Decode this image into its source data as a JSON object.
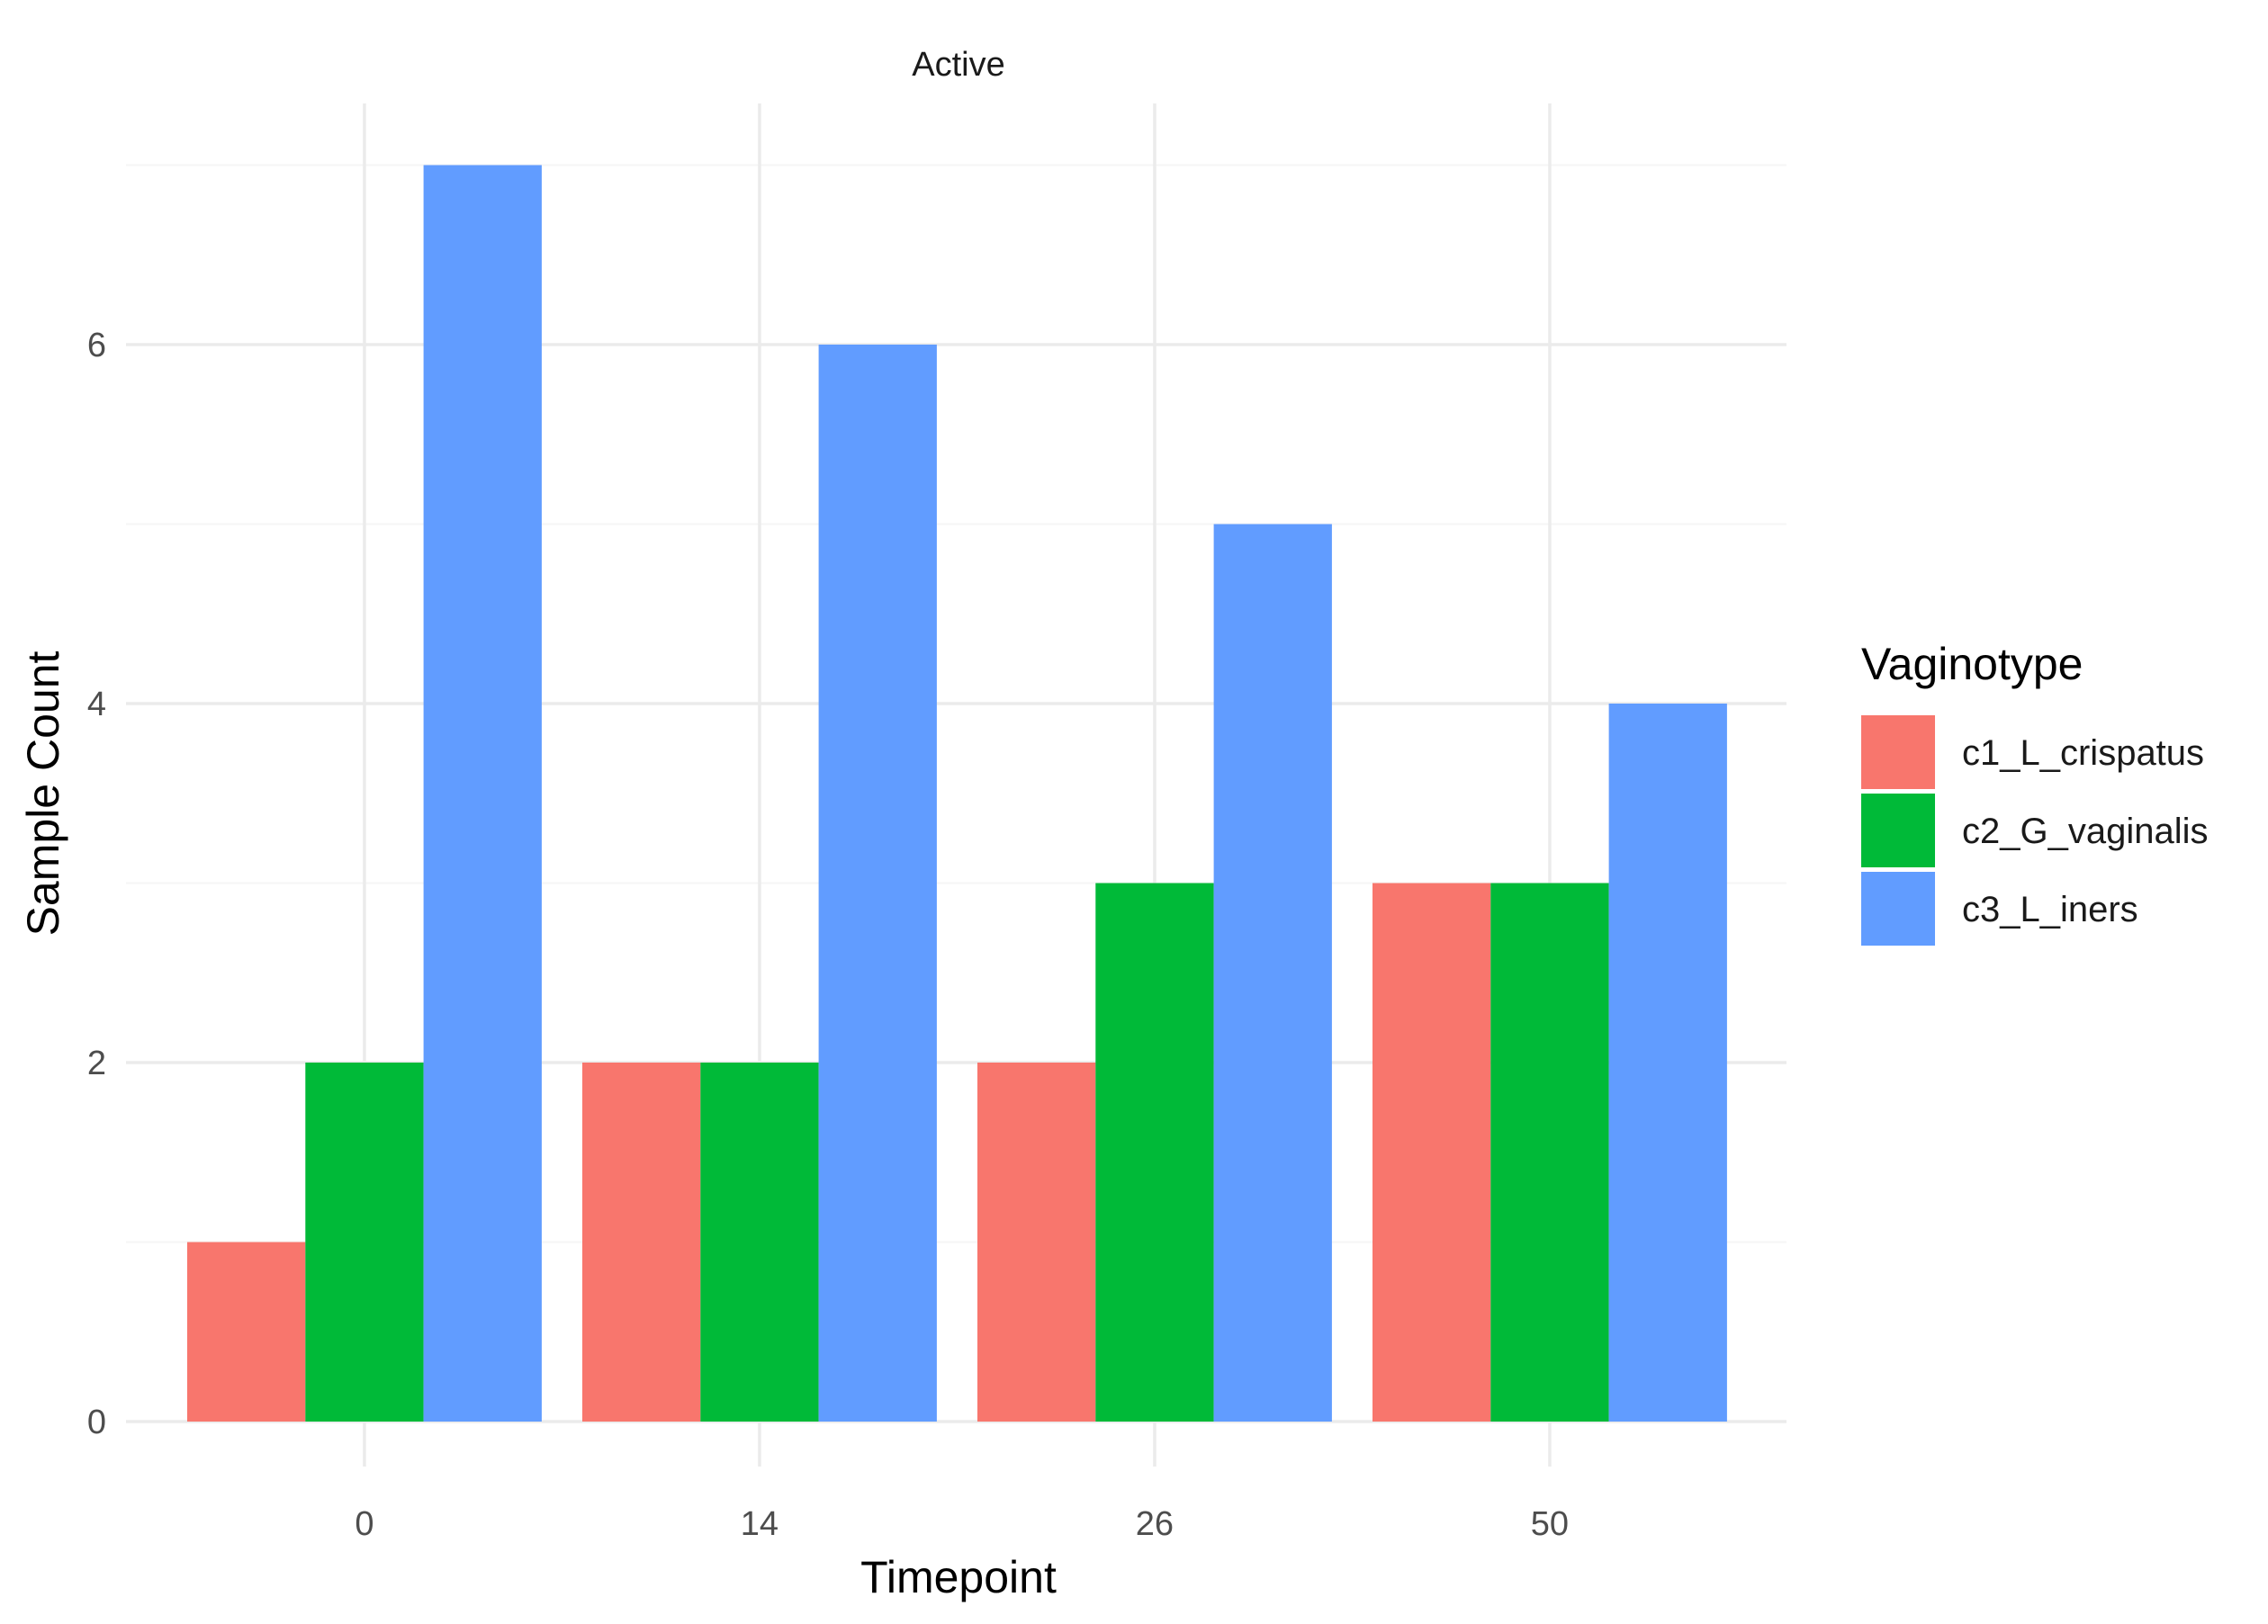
{
  "chart_data": {
    "type": "bar",
    "facet_title": "Active",
    "xlabel": "Timepoint",
    "ylabel": "Sample Count",
    "categories": [
      "0",
      "14",
      "26",
      "50"
    ],
    "series": [
      {
        "name": "c1_L_crispatus",
        "values": [
          1,
          2,
          2,
          3
        ],
        "color": "#F8766D"
      },
      {
        "name": "c2_G_vaginalis",
        "values": [
          2,
          2,
          3,
          3
        ],
        "color": "#00BA38"
      },
      {
        "name": "c3_L_iners",
        "values": [
          7,
          6,
          5,
          4
        ],
        "color": "#619CFF"
      }
    ],
    "ylim": [
      0,
      7
    ],
    "y_ticks": [
      0,
      2,
      4,
      6
    ],
    "y_minor_ticks": [
      1,
      3,
      5,
      7
    ],
    "grid": true,
    "legend": {
      "title": "Vaginotype",
      "position": "right"
    },
    "colors": {
      "grid_major": "#EBEBEB",
      "grid_minor": "#F5F5F5",
      "tick_text": "#4D4D4D",
      "title_text": "#1A1A1A",
      "axis_title_text": "#000000"
    }
  }
}
